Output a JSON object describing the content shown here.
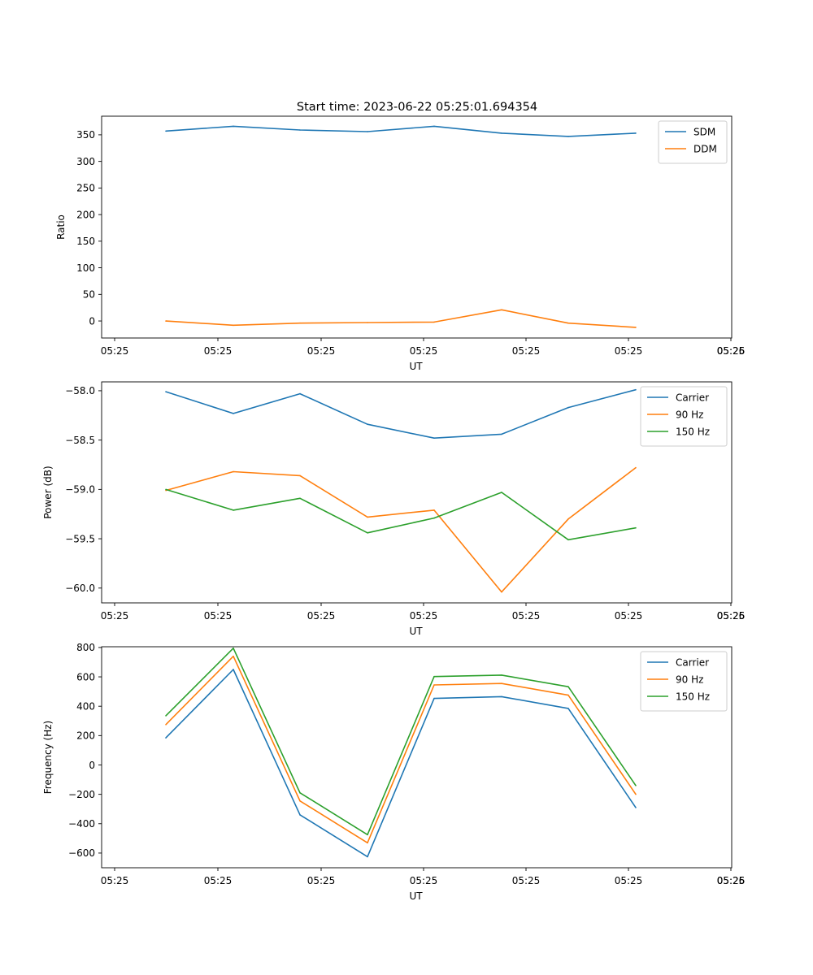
{
  "figure": {
    "title": "Start time: 2023-06-22 05:25:01.694354"
  },
  "chart_data": [
    {
      "type": "line",
      "xlabel": "UT",
      "ylabel": "Ratio",
      "x_tick_labels": [
        "05:25",
        "05:25",
        "05:25",
        "05:25",
        "05:25",
        "05:25",
        "05:25",
        "05:26"
      ],
      "y_ticks": [
        0,
        50,
        100,
        150,
        200,
        250,
        300,
        350
      ],
      "y_tick_labels": [
        "0",
        "50",
        "100",
        "150",
        "200",
        "250",
        "300",
        "350"
      ],
      "ylim": [
        -32,
        385
      ],
      "legend_position": "upper-right",
      "series": [
        {
          "name": "SDM",
          "color": "#1f77b4",
          "values": [
            357,
            366,
            359,
            356,
            366,
            353,
            347,
            353
          ]
        },
        {
          "name": "DDM",
          "color": "#ff7f0e",
          "values": [
            0,
            -8,
            -4,
            -3,
            -2,
            21,
            -4,
            -12
          ]
        }
      ]
    },
    {
      "type": "line",
      "xlabel": "UT",
      "ylabel": "Power (dB)",
      "x_tick_labels": [
        "05:25",
        "05:25",
        "05:25",
        "05:25",
        "05:25",
        "05:25",
        "05:25",
        "05:26"
      ],
      "y_ticks": [
        -60.0,
        -59.5,
        -59.0,
        -58.5,
        -58.0
      ],
      "y_tick_labels": [
        "−60.0",
        "−59.5",
        "−59.0",
        "−58.5",
        "−58.0"
      ],
      "ylim": [
        -60.15,
        -57.91
      ],
      "legend_position": "upper-right",
      "series": [
        {
          "name": "Carrier",
          "color": "#1f77b4",
          "values": [
            -58.01,
            -58.23,
            -58.03,
            -58.34,
            -58.48,
            -58.44,
            -58.17,
            -57.99
          ]
        },
        {
          "name": "90 Hz",
          "color": "#ff7f0e",
          "values": [
            -59.01,
            -58.82,
            -58.86,
            -59.28,
            -59.21,
            -60.04,
            -59.3,
            -58.78
          ]
        },
        {
          "name": "150 Hz",
          "color": "#2ca02c",
          "values": [
            -59.0,
            -59.21,
            -59.09,
            -59.44,
            -59.29,
            -59.03,
            -59.51,
            -59.39
          ]
        }
      ]
    },
    {
      "type": "line",
      "xlabel": "UT",
      "ylabel": "Frequency (Hz)",
      "x_tick_labels": [
        "05:25",
        "05:25",
        "05:25",
        "05:25",
        "05:25",
        "05:25",
        "05:25",
        "05:26"
      ],
      "y_ticks": [
        -600,
        -400,
        -200,
        0,
        200,
        400,
        600,
        800
      ],
      "y_tick_labels": [
        "−600",
        "−400",
        "−200",
        "0",
        "200",
        "400",
        "600",
        "800"
      ],
      "ylim": [
        -700,
        805
      ],
      "legend_position": "upper-right",
      "series": [
        {
          "name": "Carrier",
          "color": "#1f77b4",
          "values": [
            185,
            650,
            -340,
            -625,
            453,
            465,
            385,
            -290
          ]
        },
        {
          "name": "90 Hz",
          "color": "#ff7f0e",
          "values": [
            275,
            740,
            -245,
            -530,
            545,
            555,
            475,
            -200
          ]
        },
        {
          "name": "150 Hz",
          "color": "#2ca02c",
          "values": [
            335,
            795,
            -190,
            -475,
            602,
            612,
            533,
            -140
          ]
        }
      ]
    }
  ]
}
